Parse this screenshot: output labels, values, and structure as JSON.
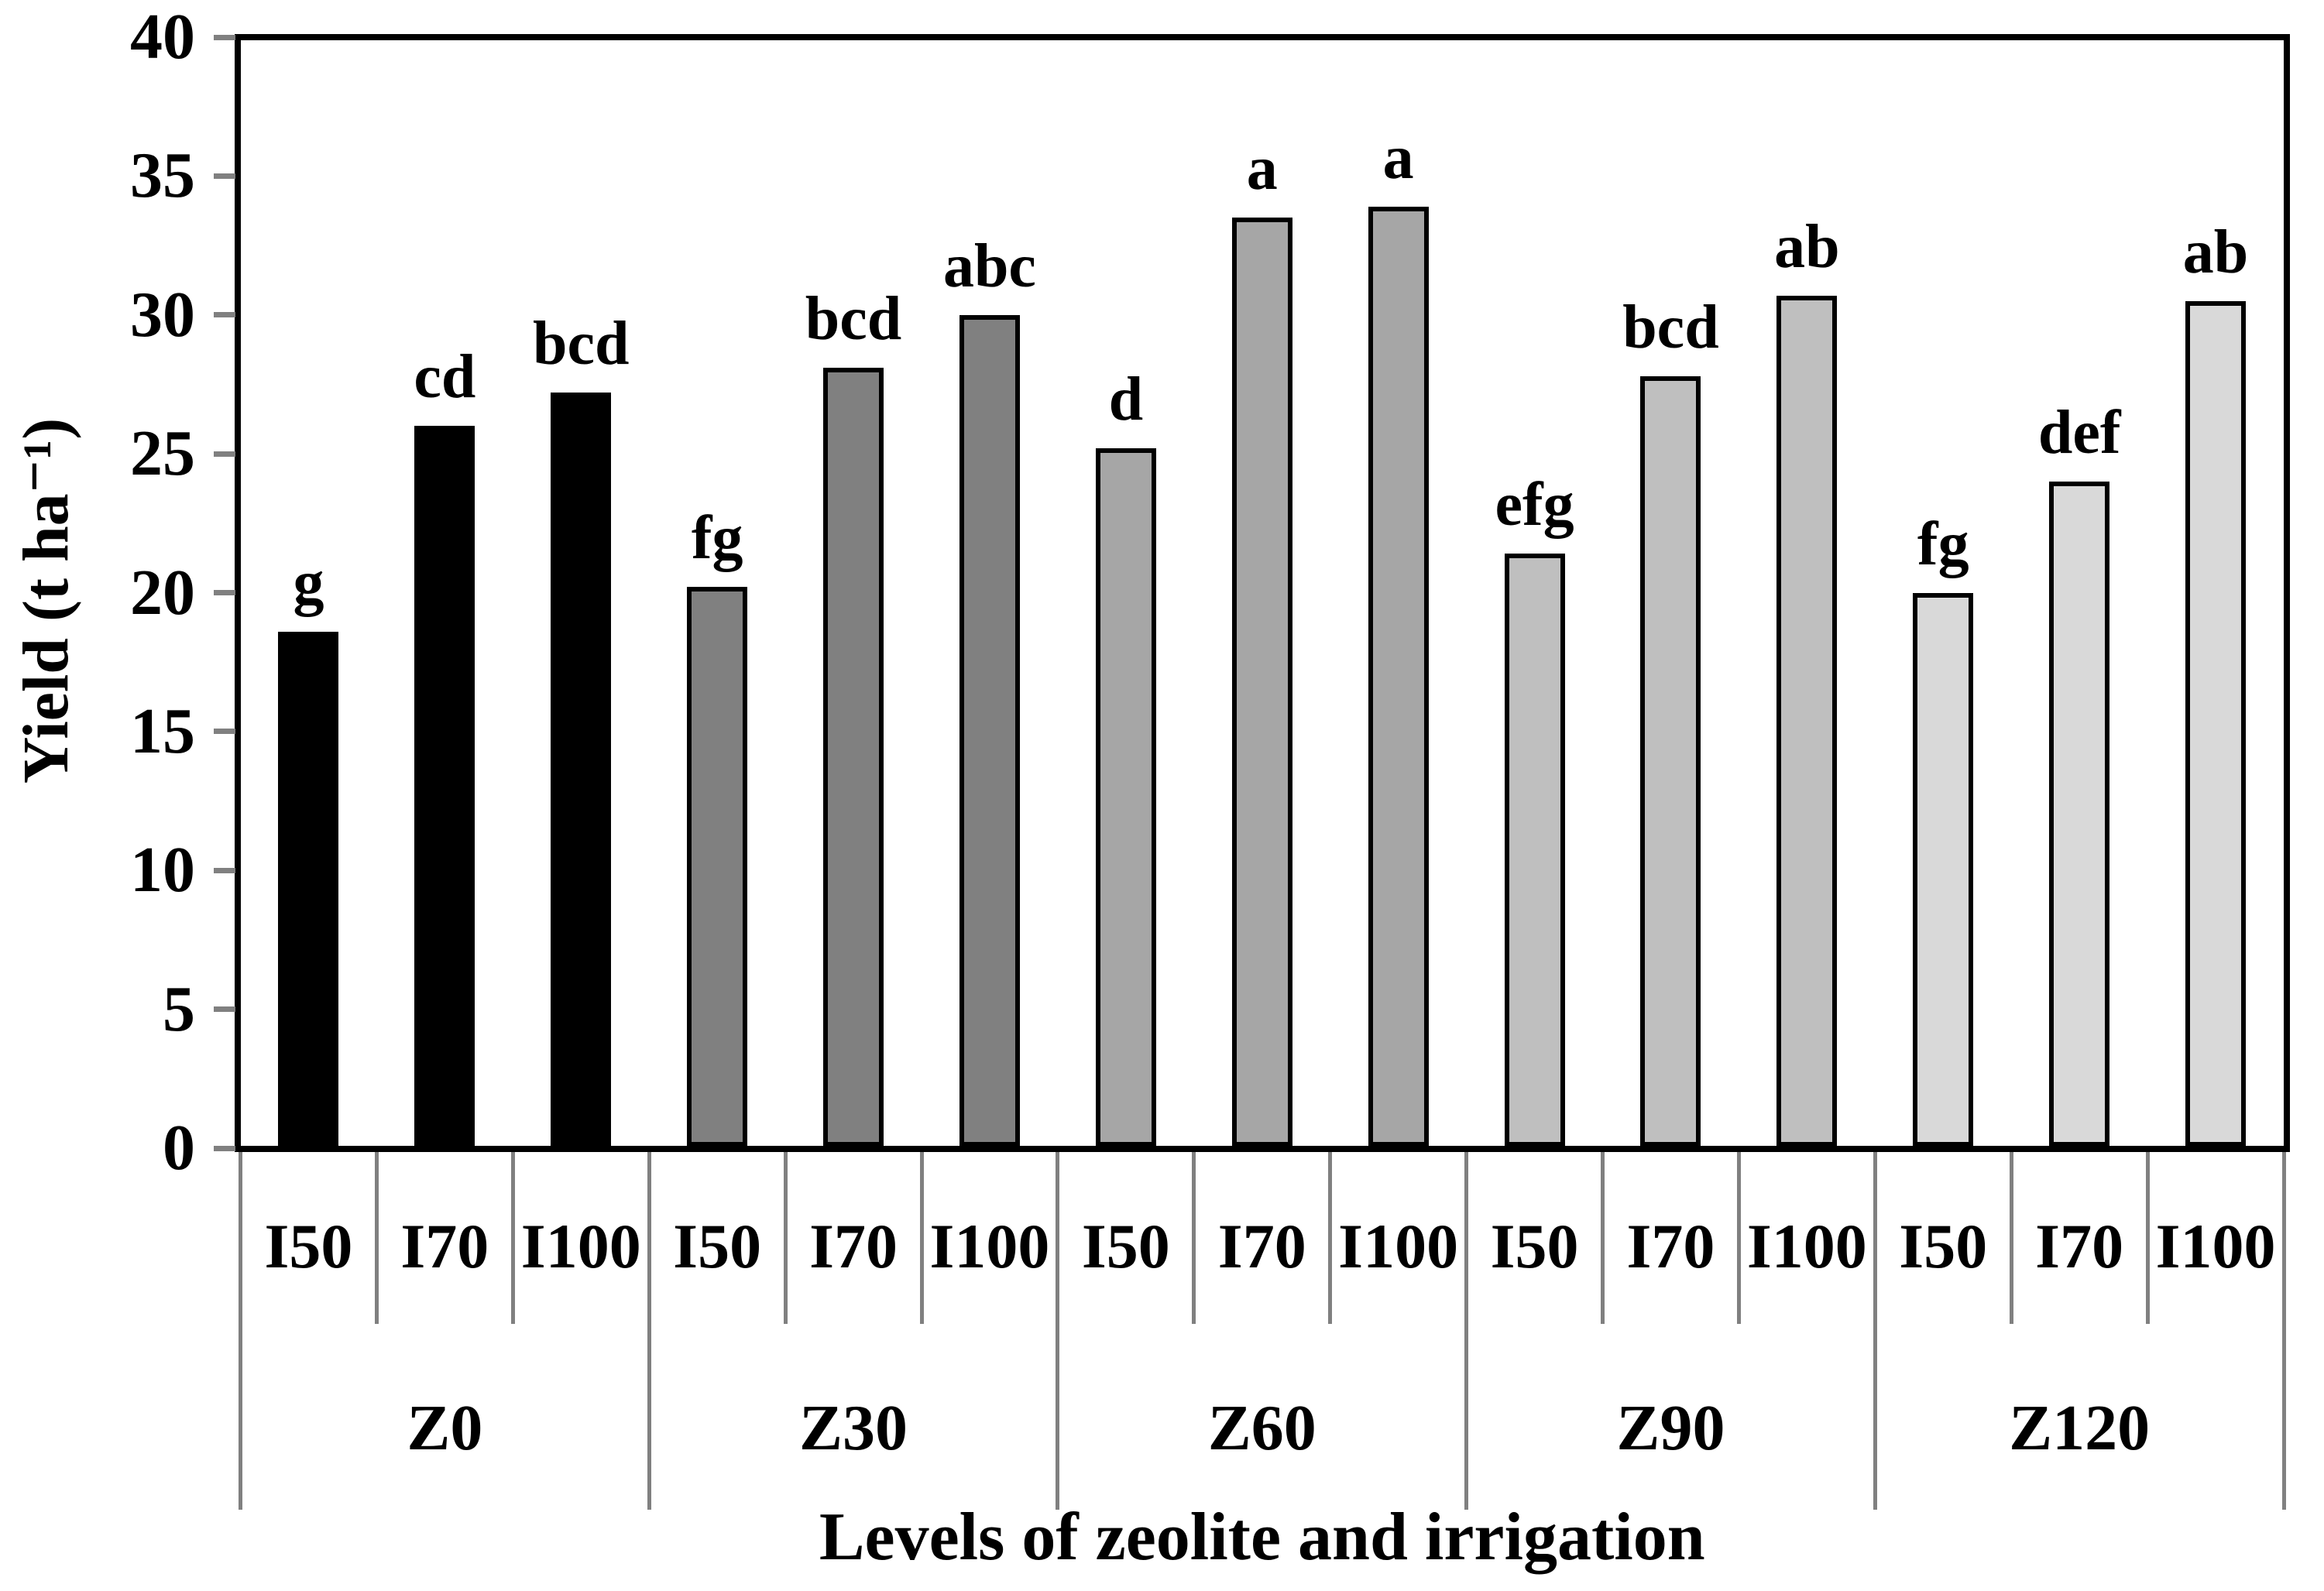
{
  "chart_data": {
    "type": "bar",
    "title": "",
    "xlabel": "Levels of zeolite and irrigation",
    "ylabel": "Yield (t ha⁻¹)",
    "ylim": [
      0,
      40
    ],
    "yticks": [
      0,
      5,
      10,
      15,
      20,
      25,
      30,
      35,
      40
    ],
    "grid": false,
    "legend": "none",
    "bar_categories": [
      "I50",
      "I70",
      "I100"
    ],
    "groups": [
      {
        "label": "Z0",
        "color": "#000000",
        "bars": [
          {
            "label": "I50",
            "value": 18.6,
            "letter": "g"
          },
          {
            "label": "I70",
            "value": 26.0,
            "letter": "cd"
          },
          {
            "label": "I100",
            "value": 27.2,
            "letter": "bcd"
          }
        ]
      },
      {
        "label": "Z30",
        "color": "#808080",
        "bars": [
          {
            "label": "I50",
            "value": 20.2,
            "letter": "fg"
          },
          {
            "label": "I70",
            "value": 28.1,
            "letter": "bcd"
          },
          {
            "label": "I100",
            "value": 30.0,
            "letter": "abc"
          }
        ]
      },
      {
        "label": "Z60",
        "color": "#A6A6A6",
        "bars": [
          {
            "label": "I50",
            "value": 25.2,
            "letter": "d"
          },
          {
            "label": "I70",
            "value": 33.5,
            "letter": "a"
          },
          {
            "label": "I100",
            "value": 33.9,
            "letter": "a"
          }
        ]
      },
      {
        "label": "Z90",
        "color": "#BFBFBF",
        "bars": [
          {
            "label": "I50",
            "value": 21.4,
            "letter": "efg"
          },
          {
            "label": "I70",
            "value": 27.8,
            "letter": "bcd"
          },
          {
            "label": "I100",
            "value": 30.7,
            "letter": "ab"
          }
        ]
      },
      {
        "label": "Z120",
        "color": "#D9D9D9",
        "bars": [
          {
            "label": "I50",
            "value": 20.0,
            "letter": "fg"
          },
          {
            "label": "I70",
            "value": 24.0,
            "letter": "def"
          },
          {
            "label": "I100",
            "value": 30.5,
            "letter": "ab"
          }
        ]
      }
    ],
    "colors": {
      "axis_line": "#000000",
      "bar_outline": "#000000",
      "tick_mark": "#808080",
      "separator_line": "#808080",
      "text": "#000000",
      "background": "#FFFFFF"
    }
  }
}
